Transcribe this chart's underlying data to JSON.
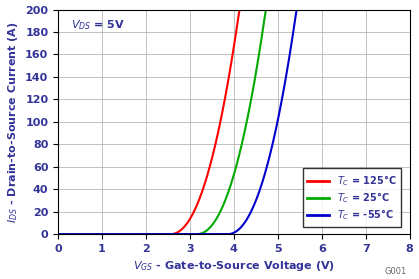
{
  "xlabel": "$V_{GS}$ - Gate-to-Source Voltage (V)",
  "ylabel": "$I_{DS}$ - Drain-to-Source Current (A)",
  "xlim": [
    0,
    8
  ],
  "ylim": [
    0,
    200
  ],
  "xticks": [
    0,
    1,
    2,
    3,
    4,
    5,
    6,
    7,
    8
  ],
  "yticks": [
    0,
    20,
    40,
    60,
    80,
    100,
    120,
    140,
    160,
    180,
    200
  ],
  "curves": {
    "T125": {
      "color": "#ff0000",
      "Vth": 2.55,
      "k": 75.0,
      "n": 2.15
    },
    "T25": {
      "color": "#00aa00",
      "Vth": 3.15,
      "k": 75.0,
      "n": 2.15
    },
    "Tm55": {
      "color": "#0000cc",
      "Vth": 3.85,
      "k": 75.0,
      "n": 2.15
    }
  },
  "legend_colors": [
    "#ff0000",
    "#00aa00",
    "#0000cc"
  ],
  "background_color": "#ffffff",
  "grid_color": "#aaaaaa",
  "annotation_text": "$V_{DS}$ = 5V",
  "watermark": "G001"
}
